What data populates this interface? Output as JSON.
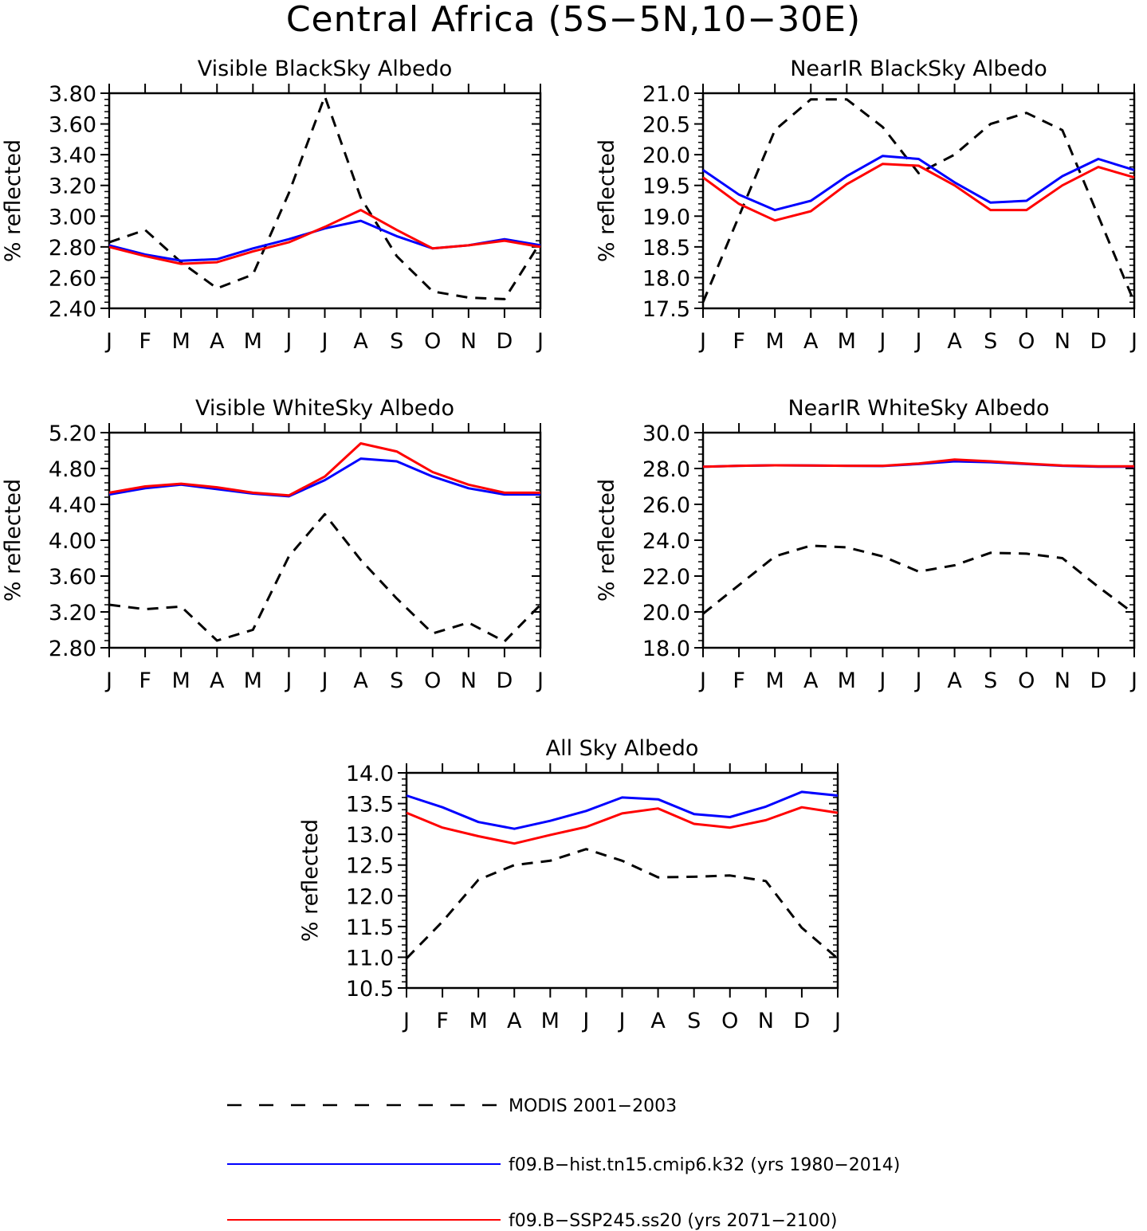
{
  "title": "Central Africa (5S−5N,10−30E)",
  "chart_data": [
    {
      "type": "line",
      "title": "Visible BlackSky Albedo",
      "ylabel": "% reflected",
      "categories": [
        "J",
        "F",
        "M",
        "A",
        "M",
        "J",
        "J",
        "A",
        "S",
        "O",
        "N",
        "D",
        "J"
      ],
      "ylim": [
        2.4,
        3.8
      ],
      "yticks": [
        "2.40",
        "2.60",
        "2.80",
        "3.00",
        "3.20",
        "3.40",
        "3.60",
        "3.80"
      ],
      "series": [
        {
          "name": "MODIS 2001−2003",
          "values": [
            2.83,
            2.91,
            2.7,
            2.53,
            2.62,
            3.15,
            3.78,
            3.12,
            2.74,
            2.51,
            2.47,
            2.46,
            2.83
          ]
        },
        {
          "name": "f09.B−hist.tn15.cmip6.k32 (yrs 1980−2014)",
          "values": [
            2.81,
            2.75,
            2.71,
            2.72,
            2.79,
            2.85,
            2.92,
            2.97,
            2.87,
            2.79,
            2.81,
            2.85,
            2.81
          ]
        },
        {
          "name": "f09.B−SSP245.ss20 (yrs 2071−2100)",
          "values": [
            2.8,
            2.74,
            2.69,
            2.7,
            2.77,
            2.83,
            2.93,
            3.04,
            2.91,
            2.79,
            2.81,
            2.84,
            2.8
          ]
        }
      ]
    },
    {
      "type": "line",
      "title": "NearIR BlackSky Albedo",
      "ylabel": "% reflected",
      "categories": [
        "J",
        "F",
        "M",
        "A",
        "M",
        "J",
        "J",
        "A",
        "S",
        "O",
        "N",
        "D",
        "J"
      ],
      "ylim": [
        17.5,
        21.0
      ],
      "yticks": [
        "17.5",
        "18.0",
        "18.5",
        "19.0",
        "19.5",
        "20.0",
        "20.5",
        "21.0"
      ],
      "series": [
        {
          "name": "MODIS 2001−2003",
          "values": [
            17.6,
            19.0,
            20.4,
            20.9,
            20.9,
            20.45,
            19.7,
            20.0,
            20.5,
            20.68,
            20.4,
            19.0,
            17.6
          ]
        },
        {
          "name": "f09.B−hist.tn15.cmip6.k32 (yrs 1980−2014)",
          "values": [
            19.75,
            19.35,
            19.1,
            19.25,
            19.65,
            19.98,
            19.93,
            19.55,
            19.22,
            19.25,
            19.65,
            19.93,
            19.75
          ]
        },
        {
          "name": "f09.B−SSP245.ss20 (yrs 2071−2100)",
          "values": [
            19.63,
            19.2,
            18.93,
            19.08,
            19.52,
            19.85,
            19.82,
            19.5,
            19.1,
            19.1,
            19.5,
            19.8,
            19.63
          ]
        }
      ]
    },
    {
      "type": "line",
      "title": "Visible WhiteSky Albedo",
      "ylabel": "% reflected",
      "categories": [
        "J",
        "F",
        "M",
        "A",
        "M",
        "J",
        "J",
        "A",
        "S",
        "O",
        "N",
        "D",
        "J"
      ],
      "ylim": [
        2.8,
        5.2
      ],
      "yticks": [
        "2.80",
        "3.20",
        "3.60",
        "4.00",
        "4.40",
        "4.80",
        "5.20"
      ],
      "series": [
        {
          "name": "MODIS 2001−2003",
          "values": [
            3.28,
            3.23,
            3.26,
            2.88,
            3.0,
            3.82,
            4.29,
            3.78,
            3.35,
            2.96,
            3.08,
            2.87,
            3.28
          ]
        },
        {
          "name": "f09.B−hist.tn15.cmip6.k32 (yrs 1980−2014)",
          "values": [
            4.51,
            4.58,
            4.62,
            4.57,
            4.52,
            4.49,
            4.67,
            4.91,
            4.88,
            4.71,
            4.58,
            4.51,
            4.51
          ]
        },
        {
          "name": "f09.B−SSP245.ss20 (yrs 2071−2100)",
          "values": [
            4.53,
            4.6,
            4.63,
            4.59,
            4.53,
            4.5,
            4.71,
            5.08,
            4.99,
            4.76,
            4.62,
            4.53,
            4.53
          ]
        }
      ]
    },
    {
      "type": "line",
      "title": "NearIR WhiteSky Albedo",
      "ylabel": "% reflected",
      "categories": [
        "J",
        "F",
        "M",
        "A",
        "M",
        "J",
        "J",
        "A",
        "S",
        "O",
        "N",
        "D",
        "J"
      ],
      "ylim": [
        18.0,
        30.0
      ],
      "yticks": [
        "18.0",
        "20.0",
        "22.0",
        "24.0",
        "26.0",
        "28.0",
        "30.0"
      ],
      "series": [
        {
          "name": "MODIS 2001−2003",
          "values": [
            19.9,
            21.5,
            23.1,
            23.7,
            23.6,
            23.1,
            22.25,
            22.6,
            23.3,
            23.25,
            23.0,
            21.4,
            19.9
          ]
        },
        {
          "name": "f09.B−hist.tn15.cmip6.k32 (yrs 1980−2014)",
          "values": [
            28.1,
            28.15,
            28.18,
            28.17,
            28.15,
            28.14,
            28.25,
            28.4,
            28.35,
            28.25,
            28.15,
            28.1,
            28.1
          ]
        },
        {
          "name": "f09.B−SSP245.ss20 (yrs 2071−2100)",
          "values": [
            28.1,
            28.15,
            28.18,
            28.17,
            28.15,
            28.15,
            28.28,
            28.5,
            28.4,
            28.27,
            28.17,
            28.12,
            28.12
          ]
        }
      ]
    },
    {
      "type": "line",
      "title": "All Sky Albedo",
      "ylabel": "% reflected",
      "categories": [
        "J",
        "F",
        "M",
        "A",
        "M",
        "J",
        "J",
        "A",
        "S",
        "O",
        "N",
        "D",
        "J"
      ],
      "ylim": [
        10.5,
        14.0
      ],
      "yticks": [
        "10.5",
        "11.0",
        "11.5",
        "12.0",
        "12.5",
        "13.0",
        "13.5",
        "14.0"
      ],
      "series": [
        {
          "name": "MODIS 2001−2003",
          "values": [
            10.98,
            11.58,
            12.26,
            12.5,
            12.57,
            12.76,
            12.57,
            12.3,
            12.31,
            12.33,
            12.24,
            11.48,
            10.98
          ]
        },
        {
          "name": "f09.B−hist.tn15.cmip6.k32 (yrs 1980−2014)",
          "values": [
            13.63,
            13.44,
            13.2,
            13.09,
            13.22,
            13.38,
            13.6,
            13.57,
            13.33,
            13.28,
            13.45,
            13.69,
            13.63
          ]
        },
        {
          "name": "f09.B−SSP245.ss20 (yrs 2071−2100)",
          "values": [
            13.35,
            13.11,
            12.97,
            12.85,
            12.99,
            13.12,
            13.34,
            13.42,
            13.17,
            13.11,
            13.23,
            13.44,
            13.35
          ]
        }
      ]
    }
  ],
  "legend": [
    {
      "label": "MODIS 2001−2003",
      "color": "#000000",
      "style": "dashed"
    },
    {
      "label": "f09.B−hist.tn15.cmip6.k32 (yrs 1980−2014)",
      "color": "#0000ff",
      "style": "solid"
    },
    {
      "label": "f09.B−SSP245.ss20 (yrs 2071−2100)",
      "color": "#ff0000",
      "style": "solid"
    }
  ]
}
